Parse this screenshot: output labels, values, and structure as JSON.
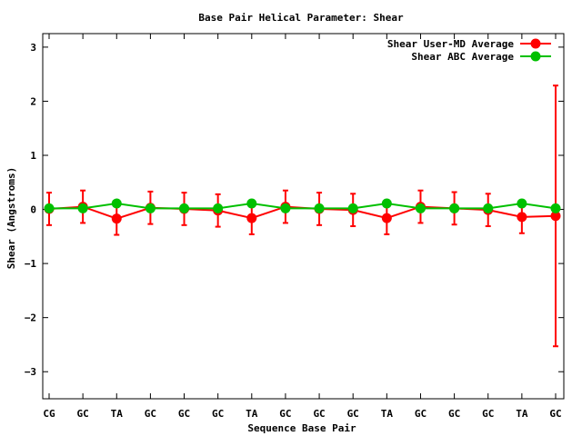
{
  "chart_data": {
    "type": "line",
    "title": "Base Pair Helical Parameter: Shear",
    "xlabel": "Sequence Base Pair",
    "ylabel": "Shear (Angstroms)",
    "categories": [
      "CG",
      "GC",
      "TA",
      "GC",
      "GC",
      "GC",
      "TA",
      "GC",
      "GC",
      "GC",
      "TA",
      "GC",
      "GC",
      "GC",
      "TA",
      "GC"
    ],
    "ylim": [
      -3.5,
      3.25
    ],
    "yticks": [
      -3,
      -2,
      -1,
      0,
      1,
      2,
      3
    ],
    "ytick_labels": [
      "−3",
      "−2",
      "−1",
      "0",
      "1",
      "2",
      "3"
    ],
    "legend_position": "top-right",
    "grid": false,
    "series": [
      {
        "name": "Shear User-MD Average",
        "color": "#ff0000",
        "values": [
          0.01,
          0.05,
          -0.17,
          0.03,
          0.01,
          -0.02,
          -0.16,
          0.05,
          0.01,
          -0.01,
          -0.16,
          0.05,
          0.02,
          -0.01,
          -0.14,
          -0.12
        ],
        "error": [
          0.3,
          0.3,
          0.3,
          0.3,
          0.3,
          0.3,
          0.3,
          0.3,
          0.3,
          0.3,
          0.3,
          0.3,
          0.3,
          0.3,
          0.3,
          2.41
        ]
      },
      {
        "name": "Shear ABC Average",
        "color": "#00c000",
        "values": [
          0.02,
          0.02,
          0.11,
          0.02,
          0.02,
          0.02,
          0.11,
          0.02,
          0.02,
          0.02,
          0.11,
          0.02,
          0.02,
          0.02,
          0.11,
          0.02
        ]
      }
    ]
  }
}
